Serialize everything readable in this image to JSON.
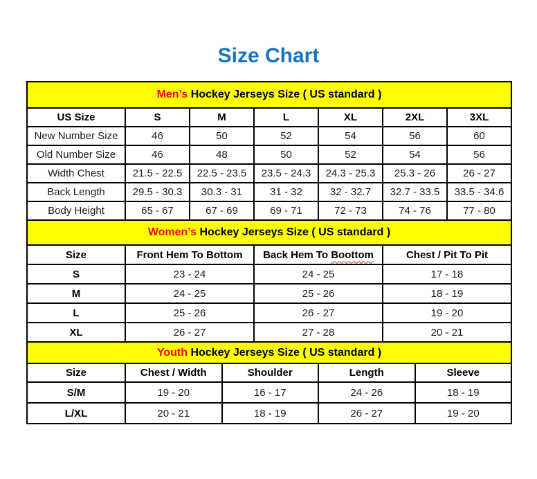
{
  "page": {
    "title": "Size Chart"
  },
  "colors": {
    "title_blue": "#1874bf",
    "banner_yellow": "#ffff00",
    "highlight_red": "#ff0000",
    "border_black": "#000000",
    "spellcheck_squiggle_red": "#e0301e"
  },
  "mens": {
    "banner": {
      "highlight": "Men’s",
      "rest": " Hockey Jerseys Size ( US standard )"
    },
    "header": [
      "US Size",
      "S",
      "M",
      "L",
      "XL",
      "2XL",
      "3XL"
    ],
    "rows": [
      [
        "New Number Size",
        "46",
        "50",
        "52",
        "54",
        "56",
        "60"
      ],
      [
        "Old Number Size",
        "46",
        "48",
        "50",
        "52",
        "54",
        "56"
      ],
      [
        "Width Chest",
        "21.5 - 22.5",
        "22.5 - 23.5",
        "23.5 - 24.3",
        "24.3 - 25.3",
        "25.3 - 26",
        "26 - 27"
      ],
      [
        "Back Length",
        "29.5 - 30.3",
        "30.3 - 31",
        "31 - 32",
        "32 - 32.7",
        "32.7 - 33.5",
        "33.5 - 34.6"
      ],
      [
        "Body Height",
        "65 - 67",
        "67 - 69",
        "69 - 71",
        "72 - 73",
        "74 - 76",
        "77 - 80"
      ]
    ]
  },
  "womens": {
    "banner": {
      "highlight": "Women’s",
      "rest": " Hockey Jerseys Size ( US standard )"
    },
    "header": [
      "Size",
      "Front Hem To Bottom",
      "Back Hem To Boottom",
      "Chest / Pit To Pit"
    ],
    "back_hem": {
      "prefix": "Back Hem To ",
      "misspelled_word": "Boottom"
    },
    "rows": [
      [
        "S",
        "23 - 24",
        "24 - 25",
        "17 - 18"
      ],
      [
        "M",
        "24 - 25",
        "25 - 26",
        "18 - 19"
      ],
      [
        "L",
        "25 - 26",
        "26 - 27",
        "19 - 20"
      ],
      [
        "XL",
        "26 - 27",
        "27 - 28",
        "20 - 21"
      ]
    ]
  },
  "youth": {
    "banner": {
      "highlight": "Youth",
      "rest": " Hockey Jerseys Size ( US standard )"
    },
    "header": [
      "Size",
      "Chest / Width",
      "Shoulder",
      "Length",
      "Sleeve"
    ],
    "rows": [
      [
        "S/M",
        "19 - 20",
        "16 - 17",
        "24 - 26",
        "18 - 19"
      ],
      [
        "L/XL",
        "20 - 21",
        "18 - 19",
        "26 - 27",
        "19 - 20"
      ]
    ]
  }
}
